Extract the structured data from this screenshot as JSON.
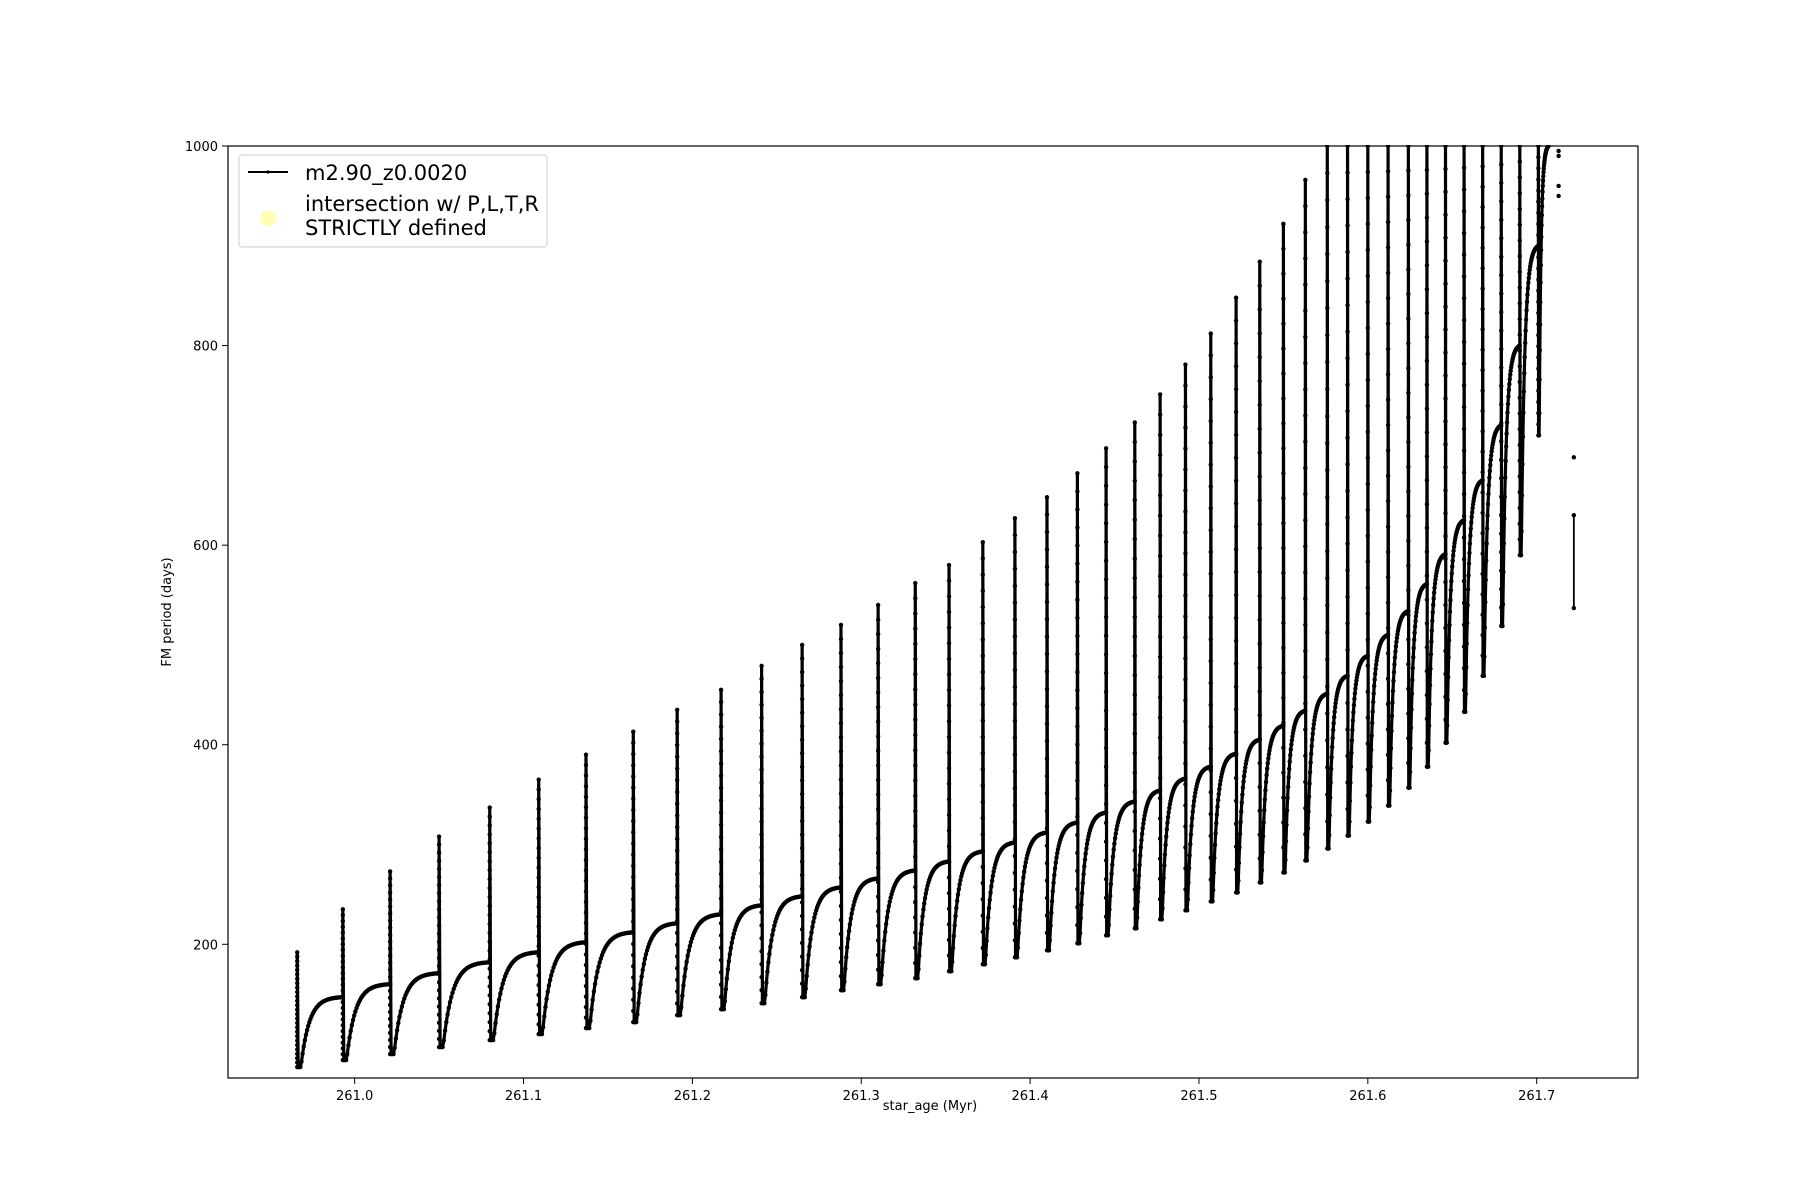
{
  "chart_data": {
    "type": "line",
    "title": "",
    "xlabel": "star_age (Myr)",
    "ylabel": "FM period (days)",
    "xlim": [
      260.925,
      261.76
    ],
    "ylim": [
      66,
      1000
    ],
    "xticks": [
      261.0,
      261.1,
      261.2,
      261.3,
      261.4,
      261.5,
      261.6,
      261.7
    ],
    "xtick_labels": [
      "261.0",
      "261.1",
      "261.2",
      "261.3",
      "261.4",
      "261.5",
      "261.6",
      "261.7"
    ],
    "yticks": [
      200,
      400,
      600,
      800,
      1000
    ],
    "ytick_labels": [
      "200",
      "400",
      "600",
      "800",
      "1000"
    ],
    "grid": false,
    "legend_position": "top-left",
    "colors": {
      "series": "#000000",
      "intersection": "#ffffb3",
      "axes": "#000000"
    },
    "series": [
      {
        "name": "m2.90_z0.0020",
        "style": "line-with-small-dot-markers",
        "pulses": [
          {
            "x": 260.966,
            "spike": 192,
            "min": 77,
            "peak": 147
          },
          {
            "x": 260.993,
            "spike": 235,
            "min": 84,
            "peak": 160
          },
          {
            "x": 261.021,
            "spike": 273,
            "min": 90,
            "peak": 171
          },
          {
            "x": 261.05,
            "spike": 308,
            "min": 97,
            "peak": 182
          },
          {
            "x": 261.08,
            "spike": 337,
            "min": 104,
            "peak": 192
          },
          {
            "x": 261.109,
            "spike": 365,
            "min": 110,
            "peak": 202
          },
          {
            "x": 261.137,
            "spike": 390,
            "min": 116,
            "peak": 212
          },
          {
            "x": 261.165,
            "spike": 413,
            "min": 122,
            "peak": 221
          },
          {
            "x": 261.191,
            "spike": 435,
            "min": 129,
            "peak": 230
          },
          {
            "x": 261.217,
            "spike": 455,
            "min": 135,
            "peak": 239
          },
          {
            "x": 261.241,
            "spike": 479,
            "min": 141,
            "peak": 248
          },
          {
            "x": 261.265,
            "spike": 500,
            "min": 147,
            "peak": 257
          },
          {
            "x": 261.288,
            "spike": 520,
            "min": 154,
            "peak": 266
          },
          {
            "x": 261.31,
            "spike": 540,
            "min": 160,
            "peak": 274
          },
          {
            "x": 261.332,
            "spike": 562,
            "min": 166,
            "peak": 283
          },
          {
            "x": 261.352,
            "spike": 580,
            "min": 173,
            "peak": 293
          },
          {
            "x": 261.372,
            "spike": 603,
            "min": 180,
            "peak": 302
          },
          {
            "x": 261.391,
            "spike": 627,
            "min": 187,
            "peak": 312
          },
          {
            "x": 261.41,
            "spike": 648,
            "min": 194,
            "peak": 322
          },
          {
            "x": 261.428,
            "spike": 672,
            "min": 201,
            "peak": 332
          },
          {
            "x": 261.445,
            "spike": 697,
            "min": 209,
            "peak": 343
          },
          {
            "x": 261.462,
            "spike": 723,
            "min": 216,
            "peak": 354
          },
          {
            "x": 261.477,
            "spike": 751,
            "min": 225,
            "peak": 366
          },
          {
            "x": 261.492,
            "spike": 781,
            "min": 234,
            "peak": 378
          },
          {
            "x": 261.507,
            "spike": 812,
            "min": 243,
            "peak": 391
          },
          {
            "x": 261.522,
            "spike": 848,
            "min": 252,
            "peak": 405
          },
          {
            "x": 261.536,
            "spike": 884,
            "min": 262,
            "peak": 419
          },
          {
            "x": 261.55,
            "spike": 922,
            "min": 272,
            "peak": 434
          },
          {
            "x": 261.563,
            "spike": 966,
            "min": 284,
            "peak": 451
          },
          {
            "x": 261.576,
            "spike": 1000,
            "min": 296,
            "peak": 469
          },
          {
            "x": 261.588,
            "spike": 1000,
            "min": 309,
            "peak": 489
          },
          {
            "x": 261.6,
            "spike": 1000,
            "min": 323,
            "peak": 510
          },
          {
            "x": 261.612,
            "spike": 1000,
            "min": 339,
            "peak": 534
          },
          {
            "x": 261.624,
            "spike": 1000,
            "min": 357,
            "peak": 561
          },
          {
            "x": 261.635,
            "spike": 1000,
            "min": 378,
            "peak": 591
          },
          {
            "x": 261.646,
            "spike": 1000,
            "min": 402,
            "peak": 625
          },
          {
            "x": 261.657,
            "spike": 1000,
            "min": 433,
            "peak": 665
          },
          {
            "x": 261.668,
            "spike": 1000,
            "min": 469,
            "peak": 720
          },
          {
            "x": 261.679,
            "spike": 1000,
            "min": 519,
            "peak": 800
          },
          {
            "x": 261.69,
            "spike": 1000,
            "min": 590,
            "peak": 900
          },
          {
            "x": 261.701,
            "spike": 1000,
            "min": 710,
            "peak": 1000
          }
        ],
        "late_points": [
          {
            "x": 261.713,
            "y": 995
          },
          {
            "x": 261.713,
            "y": 990
          },
          {
            "x": 261.713,
            "y": 950
          },
          {
            "x": 261.713,
            "y": 960
          },
          {
            "x": 261.722,
            "y": 688
          },
          {
            "x": 261.722,
            "y": 630
          },
          {
            "x": 261.722,
            "y": 537
          }
        ]
      },
      {
        "name": "intersection w/ P,L,T,R\nSTRICTLY defined",
        "style": "scatter-circle",
        "points": []
      }
    ]
  },
  "legend": {
    "series_line_label": "m2.90_z0.0020",
    "intersection_line1": "intersection w/ P,L,T,R",
    "intersection_line2": "STRICTLY defined"
  }
}
